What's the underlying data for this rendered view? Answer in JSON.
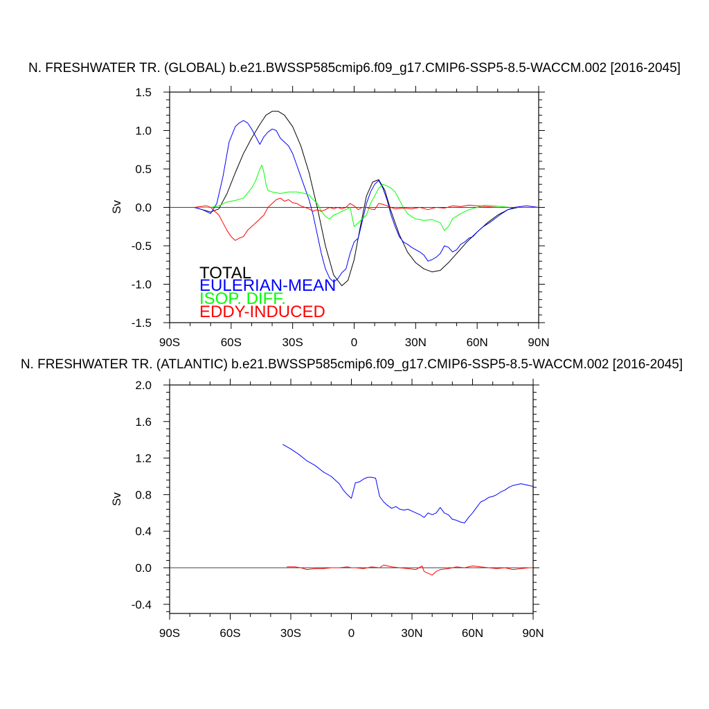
{
  "chart_data": [
    {
      "type": "line",
      "title": "N. FRESHWATER TR. (GLOBAL) b.e21.BWSSP585cmip6.f09_g17.CMIP6-SSP5-8.5-WACCM.002 [2016-2045]",
      "xlabel": "",
      "ylabel": "Sv",
      "xlim": [
        -90,
        90
      ],
      "ylim": [
        -1.5,
        1.5
      ],
      "xticks": [
        -90,
        -60,
        -30,
        0,
        30,
        60,
        90
      ],
      "xtick_labels": [
        "90S",
        "60S",
        "30S",
        "0",
        "30N",
        "60N",
        "90N"
      ],
      "yticks": [
        -1.5,
        -1.0,
        -0.5,
        0.0,
        0.5,
        1.0,
        1.5
      ],
      "ytick_labels": [
        "-1.5",
        "-1.0",
        "-0.5",
        "0.0",
        "0.5",
        "1.0",
        "1.5"
      ],
      "zero_line": true,
      "legend_position": "bottom-left",
      "series": [
        {
          "name": "TOTAL",
          "color": "#000000",
          "x": [
            -78,
            -74,
            -70,
            -66,
            -62,
            -58,
            -54,
            -50,
            -46,
            -43,
            -40,
            -37,
            -34,
            -30,
            -26,
            -22,
            -18,
            -14,
            -10,
            -6,
            -3,
            0,
            3,
            6,
            9,
            12,
            15,
            18,
            22,
            26,
            30,
            34,
            38,
            42,
            46,
            50,
            55,
            60,
            65,
            70,
            75,
            80,
            85,
            90
          ],
          "values": [
            0.0,
            -0.03,
            -0.06,
            -0.02,
            0.18,
            0.45,
            0.7,
            0.9,
            1.08,
            1.2,
            1.25,
            1.25,
            1.2,
            1.05,
            0.8,
            0.45,
            0.0,
            -0.5,
            -0.88,
            -1.02,
            -0.95,
            -0.68,
            -0.25,
            0.15,
            0.33,
            0.36,
            0.22,
            -0.05,
            -0.35,
            -0.58,
            -0.72,
            -0.8,
            -0.84,
            -0.82,
            -0.72,
            -0.6,
            -0.45,
            -0.32,
            -0.2,
            -0.1,
            -0.03,
            0.0,
            0.0,
            0.0
          ]
        },
        {
          "name": "EULERIAN-MEAN",
          "color": "#0000ff",
          "x": [
            -78,
            -74,
            -70,
            -67,
            -64,
            -61,
            -58,
            -56,
            -54,
            -52,
            -50,
            -48,
            -46,
            -44,
            -42,
            -40,
            -38,
            -36,
            -34,
            -32,
            -30,
            -28,
            -26,
            -24,
            -22,
            -20,
            -18,
            -16,
            -14,
            -12,
            -10,
            -8,
            -6,
            -4,
            -2,
            0,
            2,
            4,
            6,
            8,
            10,
            12,
            14,
            16,
            18,
            20,
            22,
            24,
            26,
            28,
            30,
            32,
            34,
            36,
            38,
            40,
            42,
            44,
            46,
            48,
            50,
            52,
            54,
            56,
            58,
            60,
            63,
            66,
            69,
            72,
            75,
            78,
            81,
            84,
            87,
            90
          ],
          "values": [
            0.0,
            -0.03,
            -0.08,
            0.05,
            0.4,
            0.85,
            1.05,
            1.1,
            1.13,
            1.1,
            1.02,
            0.92,
            0.82,
            0.92,
            0.98,
            1.02,
            1.0,
            0.9,
            0.85,
            0.8,
            0.7,
            0.55,
            0.4,
            0.25,
            0.1,
            -0.1,
            -0.35,
            -0.6,
            -0.8,
            -0.92,
            -0.97,
            -0.93,
            -0.85,
            -0.8,
            -0.6,
            -0.45,
            -0.4,
            -0.18,
            0.05,
            0.2,
            0.3,
            0.35,
            0.25,
            0.1,
            -0.1,
            -0.25,
            -0.38,
            -0.45,
            -0.48,
            -0.52,
            -0.55,
            -0.58,
            -0.62,
            -0.7,
            -0.68,
            -0.65,
            -0.6,
            -0.5,
            -0.52,
            -0.58,
            -0.55,
            -0.48,
            -0.45,
            -0.4,
            -0.38,
            -0.32,
            -0.25,
            -0.2,
            -0.14,
            -0.08,
            -0.03,
            0.0,
            0.01,
            0.02,
            0.01,
            0.0
          ]
        },
        {
          "name": "ISOP. DIFF.",
          "color": "#00ff00",
          "x": [
            -78,
            -74,
            -70,
            -66,
            -62,
            -58,
            -54,
            -50,
            -48,
            -46,
            -45,
            -44,
            -43,
            -42,
            -40,
            -36,
            -32,
            -28,
            -24,
            -22,
            -20,
            -18,
            -16,
            -14,
            -12,
            -10,
            -8,
            -6,
            -4,
            -2,
            0,
            2,
            4,
            6,
            8,
            10,
            12,
            14,
            16,
            18,
            20,
            22,
            24,
            26,
            28,
            30,
            34,
            38,
            42,
            44,
            46,
            48,
            52,
            56,
            60,
            64,
            68,
            72,
            76,
            80,
            84,
            90
          ],
          "values": [
            0.0,
            0.0,
            0.0,
            0.02,
            0.07,
            0.09,
            0.12,
            0.25,
            0.35,
            0.5,
            0.55,
            0.45,
            0.3,
            0.22,
            0.2,
            0.18,
            0.2,
            0.2,
            0.18,
            0.16,
            0.1,
            0.05,
            -0.05,
            -0.12,
            -0.15,
            -0.1,
            -0.08,
            -0.05,
            -0.03,
            0.0,
            -0.25,
            -0.2,
            -0.15,
            -0.1,
            0.05,
            0.15,
            0.25,
            0.3,
            0.28,
            0.25,
            0.2,
            0.1,
            0.0,
            -0.08,
            -0.12,
            -0.15,
            -0.17,
            -0.16,
            -0.2,
            -0.3,
            -0.25,
            -0.15,
            -0.08,
            -0.03,
            0.0,
            0.03,
            0.02,
            0.01,
            0.0,
            0.0,
            0.0,
            0.0
          ]
        },
        {
          "name": "EDDY-INDUCED",
          "color": "#ff0000",
          "x": [
            -78,
            -75,
            -72,
            -70,
            -68,
            -66,
            -64,
            -62,
            -60,
            -58,
            -56,
            -54,
            -52,
            -50,
            -48,
            -46,
            -44,
            -42,
            -40,
            -38,
            -36,
            -34,
            -32,
            -30,
            -28,
            -26,
            -24,
            -22,
            -20,
            -18,
            -16,
            -14,
            -12,
            -10,
            -8,
            -6,
            -4,
            -2,
            0,
            2,
            4,
            6,
            8,
            10,
            12,
            14,
            16,
            18,
            20,
            24,
            28,
            32,
            36,
            40,
            44,
            48,
            52,
            56,
            60,
            65,
            70,
            75,
            80,
            85,
            90
          ],
          "values": [
            0.0,
            0.01,
            0.02,
            0.0,
            -0.05,
            -0.1,
            -0.2,
            -0.3,
            -0.38,
            -0.43,
            -0.4,
            -0.38,
            -0.3,
            -0.25,
            -0.2,
            -0.15,
            -0.1,
            0.0,
            0.05,
            0.1,
            0.12,
            0.08,
            0.1,
            0.06,
            0.05,
            0.02,
            0.0,
            -0.02,
            -0.05,
            -0.03,
            -0.05,
            -0.03,
            0.0,
            -0.02,
            0.0,
            -0.02,
            0.0,
            0.05,
            0.02,
            -0.03,
            0.0,
            0.0,
            -0.02,
            -0.03,
            0.05,
            0.04,
            0.02,
            0.0,
            -0.02,
            -0.01,
            -0.02,
            0.0,
            -0.03,
            0.0,
            -0.01,
            0.02,
            0.01,
            0.03,
            0.02,
            0.01,
            0.0,
            0.0,
            0.0,
            0.0,
            0.0
          ]
        }
      ]
    },
    {
      "type": "line",
      "title": "N. FRESHWATER TR. (ATLANTIC) b.e21.BWSSP585cmip6.f09_g17.CMIP6-SSP5-8.5-WACCM.002 [2016-2045]",
      "xlabel": "",
      "ylabel": "Sv",
      "xlim": [
        -90,
        90
      ],
      "ylim": [
        -0.5,
        2.0
      ],
      "xticks": [
        -90,
        -60,
        -30,
        0,
        30,
        60,
        90
      ],
      "xtick_labels": [
        "90S",
        "60S",
        "30S",
        "0",
        "30N",
        "60N",
        "90N"
      ],
      "yticks": [
        -0.4,
        0.0,
        0.4,
        0.8,
        1.2,
        1.6,
        2.0
      ],
      "ytick_labels": [
        "-0.4",
        "0.0",
        "0.4",
        "0.8",
        "1.2",
        "1.6",
        "2.0"
      ],
      "zero_line": true,
      "series": [
        {
          "color": "#0000ff",
          "x": [
            -34,
            -30,
            -26,
            -22,
            -18,
            -14,
            -10,
            -6,
            -4,
            -2,
            0,
            2,
            4,
            6,
            8,
            10,
            12,
            14,
            16,
            18,
            20,
            22,
            24,
            26,
            28,
            30,
            32,
            34,
            36,
            38,
            40,
            42,
            44,
            46,
            48,
            50,
            52,
            54,
            56,
            58,
            60,
            62,
            64,
            66,
            68,
            70,
            72,
            74,
            76,
            78,
            80,
            82,
            84,
            86,
            88,
            90
          ],
          "values": [
            1.35,
            1.3,
            1.24,
            1.17,
            1.12,
            1.05,
            1.0,
            0.92,
            0.85,
            0.8,
            0.76,
            0.93,
            0.94,
            0.97,
            0.99,
            0.99,
            0.98,
            0.78,
            0.72,
            0.68,
            0.65,
            0.67,
            0.64,
            0.63,
            0.64,
            0.62,
            0.6,
            0.58,
            0.55,
            0.6,
            0.58,
            0.6,
            0.66,
            0.6,
            0.58,
            0.53,
            0.52,
            0.5,
            0.49,
            0.55,
            0.6,
            0.66,
            0.72,
            0.74,
            0.77,
            0.78,
            0.8,
            0.83,
            0.85,
            0.88,
            0.9,
            0.91,
            0.92,
            0.91,
            0.9,
            0.89
          ]
        },
        {
          "color": "#ff0000",
          "x": [
            -32,
            -28,
            -25,
            -22,
            -18,
            -14,
            -10,
            -6,
            -2,
            0,
            2,
            6,
            10,
            14,
            16,
            18,
            20,
            24,
            28,
            32,
            35,
            36,
            38,
            40,
            42,
            44,
            48,
            52,
            56,
            60,
            64,
            68,
            72,
            76,
            80,
            84,
            88,
            90
          ],
          "values": [
            0.01,
            0.01,
            0.0,
            -0.02,
            -0.01,
            -0.01,
            0.0,
            0.0,
            0.01,
            0.0,
            0.0,
            -0.01,
            0.01,
            0.0,
            0.03,
            0.02,
            0.01,
            0.0,
            -0.01,
            -0.02,
            0.02,
            -0.04,
            -0.06,
            -0.08,
            -0.04,
            -0.02,
            -0.01,
            0.01,
            0.0,
            0.02,
            0.01,
            0.0,
            -0.01,
            0.0,
            -0.02,
            -0.01,
            0.0,
            0.0
          ]
        }
      ]
    }
  ]
}
